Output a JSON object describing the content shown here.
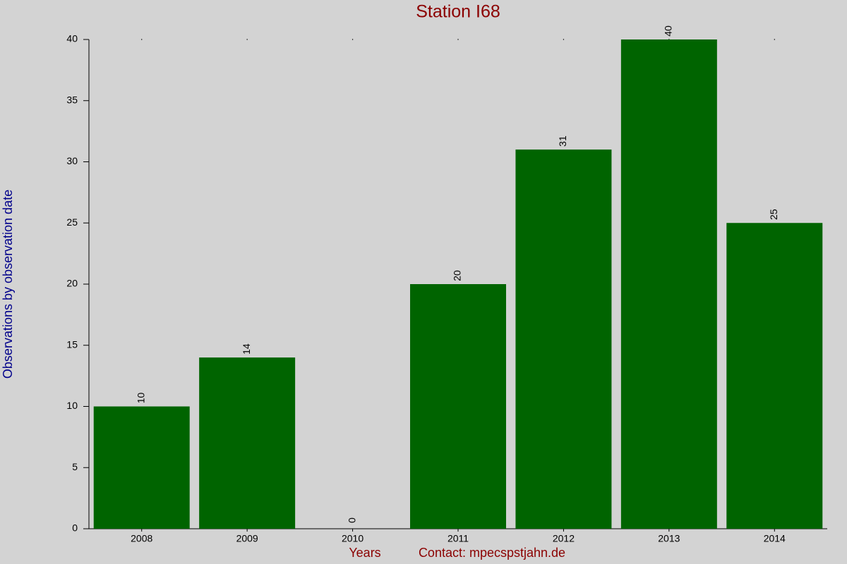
{
  "chart_data": {
    "type": "bar",
    "title": "Station I68",
    "ylabel": "Observations by observation date",
    "xlabel": "Years",
    "note": "Contact: mpecspstjahn.de",
    "categories": [
      "2008",
      "2009",
      "2010",
      "2011",
      "2012",
      "2013",
      "2014"
    ],
    "values": [
      10,
      14,
      0,
      20,
      31,
      40,
      25
    ],
    "color": "#006400",
    "ylim": [
      0,
      40
    ],
    "yticks": [
      0,
      5,
      10,
      15,
      20,
      25,
      30,
      35,
      40
    ],
    "grid": false
  }
}
